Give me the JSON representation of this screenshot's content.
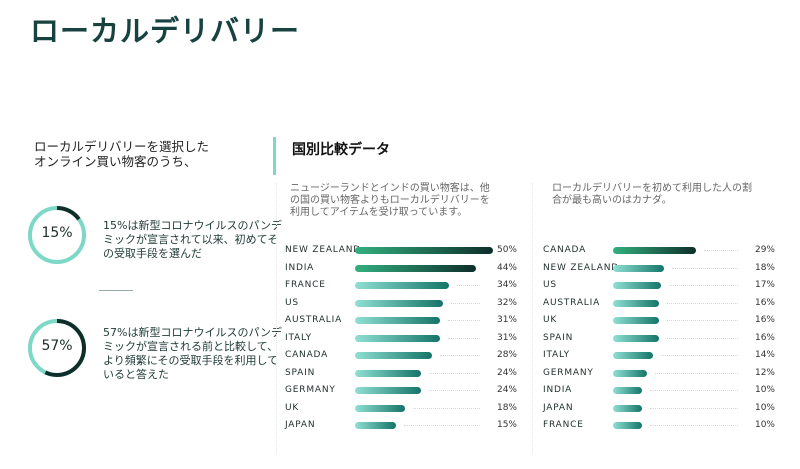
{
  "title": "ローカルデリバリー",
  "intro": "ローカルデリバリーを選択した\nオンライン買い物客のうち、",
  "stats": [
    {
      "label": "15%",
      "value": 15,
      "text": "15%は新型コロナウイルスのパンデミックが宣言されて以来、初めてその受取手段を選んだ"
    },
    {
      "label": "57%",
      "value": 57,
      "text": "57%は新型コロナウイルスのパンデミックが宣言される前と比較して、より頻繁にその受取手段を利用していると答えた"
    }
  ],
  "section_title": "国別比較データ",
  "colors": {
    "teal_light": "#8fe0d3",
    "teal_dark": "#157468",
    "green": "#33b07f",
    "ink": "#0d2e2a"
  },
  "chart_data": [
    {
      "type": "bar",
      "orientation": "horizontal",
      "note": "ニュージーランドとインドの買い物客は、他の国の買い物客よりもローカルデリバリーを利用してアイテムを受け取っています。",
      "categories": [
        "NEW ZEALAND",
        "INDIA",
        "FRANCE",
        "US",
        "AUSTRALIA",
        "ITALY",
        "CANADA",
        "SPAIN",
        "GERMANY",
        "UK",
        "JAPAN"
      ],
      "values": [
        50,
        44,
        34,
        32,
        31,
        31,
        28,
        24,
        24,
        18,
        15
      ],
      "labels": [
        "50%",
        "44%",
        "34%",
        "32%",
        "31%",
        "31%",
        "28%",
        "24%",
        "24%",
        "18%",
        "15%"
      ],
      "highlighted": 2,
      "unit": "%"
    },
    {
      "type": "bar",
      "orientation": "horizontal",
      "note": "ローカルデリバリーを初めて利用した人の割合が最も高いのはカナダ。",
      "categories": [
        "CANADA",
        "NEW ZEALAND",
        "US",
        "AUSTRALIA",
        "UK",
        "SPAIN",
        "ITALY",
        "GERMANY",
        "INDIA",
        "JAPAN",
        "FRANCE"
      ],
      "values": [
        29,
        18,
        17,
        16,
        16,
        16,
        14,
        12,
        10,
        10,
        10
      ],
      "labels": [
        "29%",
        "18%",
        "17%",
        "16%",
        "16%",
        "16%",
        "14%",
        "12%",
        "10%",
        "10%",
        "10%"
      ],
      "highlighted": 1,
      "unit": "%"
    }
  ]
}
